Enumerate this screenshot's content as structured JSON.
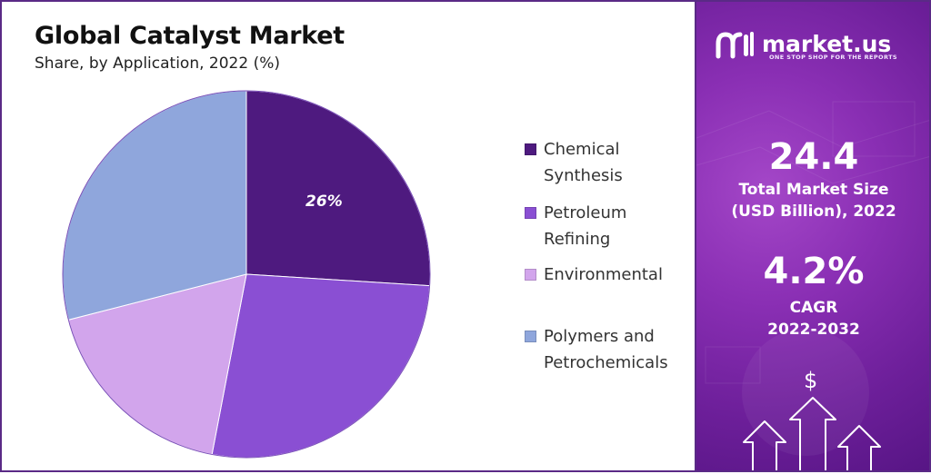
{
  "chart_data": {
    "type": "pie",
    "title": "Global Catalyst Market",
    "subtitle": "Share, by Application, 2022 (%)",
    "slices": [
      {
        "name": "Chemical Synthesis",
        "value": 26,
        "label": "26%",
        "color": "#4e1a7f"
      },
      {
        "name": "Petroleum Refining",
        "value": 27,
        "label": "",
        "color": "#8a4fd3"
      },
      {
        "name": "Environmental",
        "value": 18,
        "label": "",
        "color": "#d2a5ec"
      },
      {
        "name": "Polymers and Petrochemicals",
        "value": 29,
        "label": "",
        "color": "#8fa6dc"
      }
    ],
    "start_angle_deg": 0,
    "direction": "clockwise",
    "legend_position": "right"
  },
  "legend": [
    {
      "label": "Chemical Synthesis",
      "color": "#4e1a7f"
    },
    {
      "label": "Petroleum Refining",
      "color": "#8a4fd3"
    },
    {
      "label": "Environmental",
      "color": "#d2a5ec"
    },
    {
      "label": "Polymers and Petrochemicals",
      "color": "#8fa6dc"
    }
  ],
  "brand": {
    "name": "market.us",
    "tagline": "ONE STOP SHOP FOR THE REPORTS"
  },
  "stats": {
    "market_size_value": "24.4",
    "market_size_label_line1": "Total Market Size",
    "market_size_label_line2": "(USD Billion), 2022",
    "cagr_value": "4.2%",
    "cagr_label_line1": "CAGR",
    "cagr_label_line2": "2022-2032"
  },
  "icons": {
    "currency": "$",
    "currency_icon_name": "dollar-icon",
    "arrows_icon_name": "growth-arrows-icon"
  },
  "colors": {
    "panel_border": "#5a2a86",
    "side_panel_bg": "#8a2fb4"
  }
}
